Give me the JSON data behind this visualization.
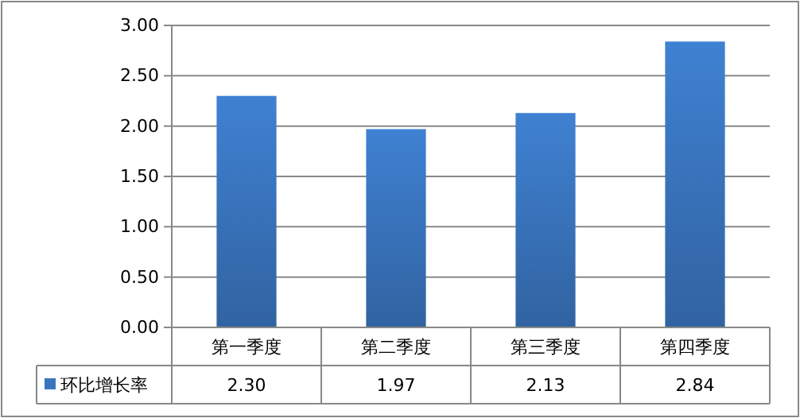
{
  "chart_data": {
    "type": "bar",
    "categories": [
      "第一季度",
      "第二季度",
      "第三季度",
      "第四季度"
    ],
    "series": [
      {
        "name": "环比增长率",
        "color": "#3a76c0",
        "values": [
          2.3,
          1.97,
          2.13,
          2.84
        ],
        "value_labels": [
          "2.30",
          "1.97",
          "2.13",
          "2.84"
        ]
      }
    ],
    "ylim": [
      0,
      3
    ],
    "yticks": [
      {
        "value": 0,
        "label": "0.00"
      },
      {
        "value": 0.5,
        "label": "0.50"
      },
      {
        "value": 1,
        "label": "1.00"
      },
      {
        "value": 1.5,
        "label": "1.50"
      },
      {
        "value": 2,
        "label": "2.00"
      },
      {
        "value": 2.5,
        "label": "2.50"
      },
      {
        "value": 3,
        "label": "3.00"
      }
    ],
    "grid": "y",
    "legend": "bottom"
  }
}
